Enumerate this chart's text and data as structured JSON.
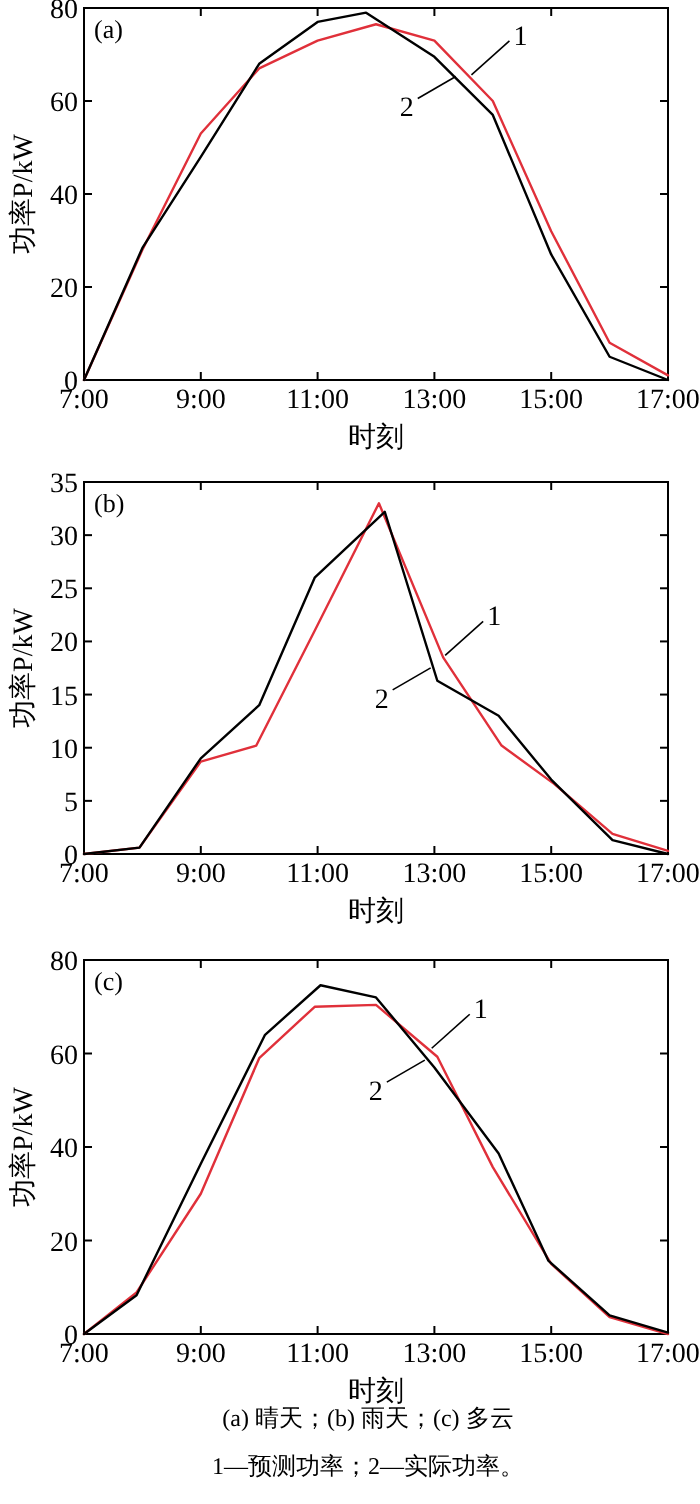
{
  "chart_data": [
    {
      "type": "line",
      "xlabel": "时刻",
      "ylabel": "功率P/kW",
      "xlim": [
        7,
        17
      ],
      "ylim": [
        0,
        80
      ],
      "xticks": [
        {
          "value": 7,
          "label": "7:00"
        },
        {
          "value": 9,
          "label": "9:00"
        },
        {
          "value": 11,
          "label": "11:00"
        },
        {
          "value": 13,
          "label": "13:00"
        },
        {
          "value": 15,
          "label": "15:00"
        },
        {
          "value": 17,
          "label": "17:00"
        }
      ],
      "yticks": [
        0,
        20,
        40,
        60,
        80
      ],
      "series": [
        {
          "color": "#e0303a",
          "x": [
            7,
            8,
            9,
            10,
            11,
            12,
            13,
            14,
            15,
            16,
            17
          ],
          "values": [
            0,
            28,
            53,
            67,
            73,
            76.5,
            73,
            60,
            32,
            8,
            1
          ]
        },
        {
          "color": "#000000",
          "x": [
            7,
            8,
            9,
            10,
            11,
            11.83,
            13,
            14,
            15,
            16,
            17
          ],
          "values": [
            0,
            28.4,
            48,
            68,
            77,
            79,
            69.5,
            57,
            27,
            5,
            0
          ]
        }
      ],
      "annotations": [
        "(a)",
        {
          "text": "1",
          "x": 13.6,
          "y": 65.2
        },
        {
          "text": "2",
          "x": 13.4,
          "y": 65.7
        }
      ]
    },
    {
      "type": "line",
      "xlabel": "时刻",
      "ylabel": "功率P/kW",
      "xlim": [
        7,
        17
      ],
      "ylim": [
        0,
        35
      ],
      "xticks": [
        {
          "value": 7,
          "label": "7:00"
        },
        {
          "value": 9,
          "label": "9:00"
        },
        {
          "value": 11,
          "label": "11:00"
        },
        {
          "value": 13,
          "label": "13:00"
        },
        {
          "value": 15,
          "label": "15:00"
        },
        {
          "value": 17,
          "label": "17:00"
        }
      ],
      "yticks": [
        0,
        5,
        10,
        15,
        20,
        25,
        30,
        35
      ],
      "series": [
        {
          "color": "#e0303a",
          "x": [
            7,
            7.95,
            9,
            9.95,
            10.95,
            12.05,
            13.15,
            14.15,
            15.05,
            16.05,
            17
          ],
          "values": [
            0,
            0.6,
            8.7,
            10.2,
            21,
            33,
            18.5,
            10.2,
            6.6,
            1.9,
            0.3
          ]
        },
        {
          "color": "#000000",
          "x": [
            7,
            7.95,
            9,
            10,
            10.95,
            12.15,
            13.05,
            14.1,
            15,
            16.05,
            17
          ],
          "values": [
            0,
            0.6,
            9,
            14,
            26,
            32.2,
            16.3,
            13,
            7,
            1.3,
            0
          ]
        }
      ],
      "annotations": [
        "(b)",
        {
          "text": "1",
          "x": 13.15,
          "y": 18.5
        },
        {
          "text": "2",
          "x": 12.97,
          "y": 17.7
        }
      ]
    },
    {
      "type": "line",
      "xlabel": "时刻",
      "ylabel": "功率P/kW",
      "xlim": [
        7,
        17
      ],
      "ylim": [
        0,
        80
      ],
      "xticks": [
        {
          "value": 7,
          "label": "7:00"
        },
        {
          "value": 9,
          "label": "9:00"
        },
        {
          "value": 11,
          "label": "11:00"
        },
        {
          "value": 13,
          "label": "13:00"
        },
        {
          "value": 15,
          "label": "15:00"
        },
        {
          "value": 17,
          "label": "17:00"
        }
      ],
      "yticks": [
        0,
        20,
        40,
        60,
        80
      ],
      "series": [
        {
          "color": "#e0303a",
          "x": [
            7,
            7.9,
            9,
            10,
            10.95,
            12,
            13.05,
            14,
            15,
            16,
            17
          ],
          "values": [
            0,
            8.9,
            30,
            59,
            70,
            70.4,
            59.3,
            35.7,
            15,
            3.6,
            0
          ]
        },
        {
          "color": "#000000",
          "x": [
            7,
            7.9,
            9,
            10.1,
            11.05,
            12,
            13,
            14.1,
            14.95,
            16,
            17
          ],
          "values": [
            0,
            8.3,
            36.4,
            64,
            74.6,
            72,
            57,
            38.6,
            15.7,
            4,
            0.3
          ]
        }
      ],
      "annotations": [
        "(c)",
        {
          "text": "1",
          "x": 12.92,
          "y": 60.7
        },
        {
          "text": "2",
          "x": 12.87,
          "y": 59
        },
        "(a) 晴天；(b) 雨天；(c) 多云",
        "1—预测功率；2—实际功率。"
      ]
    }
  ]
}
